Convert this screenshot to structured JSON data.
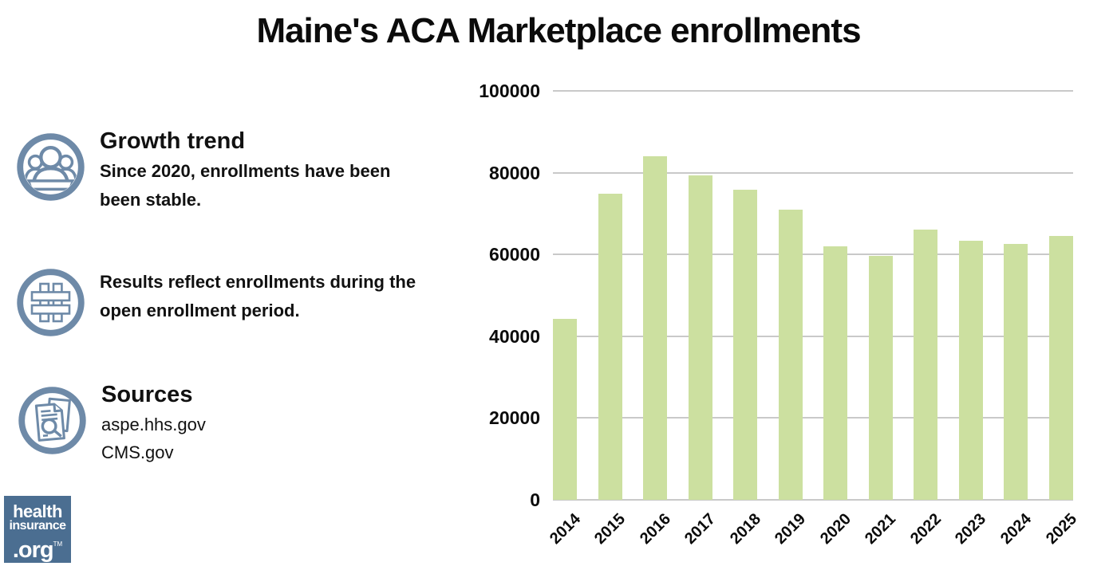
{
  "title": "Maine's ACA Marketplace enrollments",
  "colors": {
    "icon_blue": "#6e8aa8",
    "logo_blue": "#4b6e91",
    "text": "#111111"
  },
  "sections": [
    {
      "icon": "people-icon",
      "heading": "Growth trend",
      "lines": [
        "Since 2020, enrollments have been",
        "been stable."
      ]
    },
    {
      "icon": "hashtag-icon",
      "heading": "",
      "lines": [
        "Results reflect enrollments during the",
        "open enrollment period."
      ]
    },
    {
      "icon": "documents-search-icon",
      "heading": "Sources",
      "links": [
        "aspe.hhs.gov",
        "CMS.gov"
      ]
    }
  ],
  "logo": {
    "lines": [
      "health",
      "insurance",
      ".org"
    ],
    "tm": "TM"
  },
  "chart_data": {
    "type": "bar",
    "title": "Maine's ACA Marketplace enrollments",
    "categories": [
      "2014",
      "2015",
      "2016",
      "2017",
      "2018",
      "2019",
      "2020",
      "2021",
      "2022",
      "2023",
      "2024",
      "2025"
    ],
    "values": [
      44258,
      74792,
      84059,
      79407,
      75809,
      70987,
      62007,
      59738,
      66095,
      63388,
      62500,
      64600
    ],
    "xlabel": "",
    "ylabel": "",
    "ylim": [
      0,
      100000
    ],
    "yticks": [
      0,
      20000,
      40000,
      60000,
      80000,
      100000
    ],
    "grid": "horizontal",
    "legend_position": "none",
    "bar_color": "#cce0a0",
    "gridline_color": "#c9c9c9"
  }
}
